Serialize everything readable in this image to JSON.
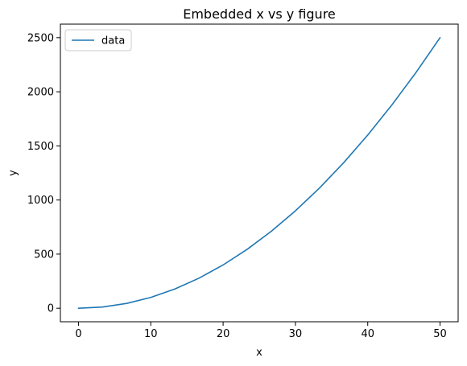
{
  "chart_data": {
    "type": "line",
    "title": "Embedded x vs y figure",
    "xlabel": "x",
    "ylabel": "y",
    "xlim": [
      -2.5,
      52.5
    ],
    "ylim": [
      -125,
      2625
    ],
    "xticks": [
      0,
      10,
      20,
      30,
      40,
      50
    ],
    "yticks": [
      0,
      500,
      1000,
      1500,
      2000,
      2500
    ],
    "grid": false,
    "legend": {
      "placement": "top-left",
      "entries": [
        "data"
      ]
    },
    "series": [
      {
        "name": "data",
        "color": "#1f77b4",
        "x": [
          0,
          3.333,
          6.667,
          10,
          13.333,
          16.667,
          20,
          23.333,
          26.667,
          30,
          33.333,
          36.667,
          40,
          43.333,
          46.667,
          50
        ],
        "y": [
          0,
          11.11,
          44.44,
          100,
          177.78,
          277.78,
          400,
          544.44,
          711.11,
          900,
          1111.11,
          1344.44,
          1600,
          1877.78,
          2177.78,
          2500
        ]
      }
    ]
  }
}
